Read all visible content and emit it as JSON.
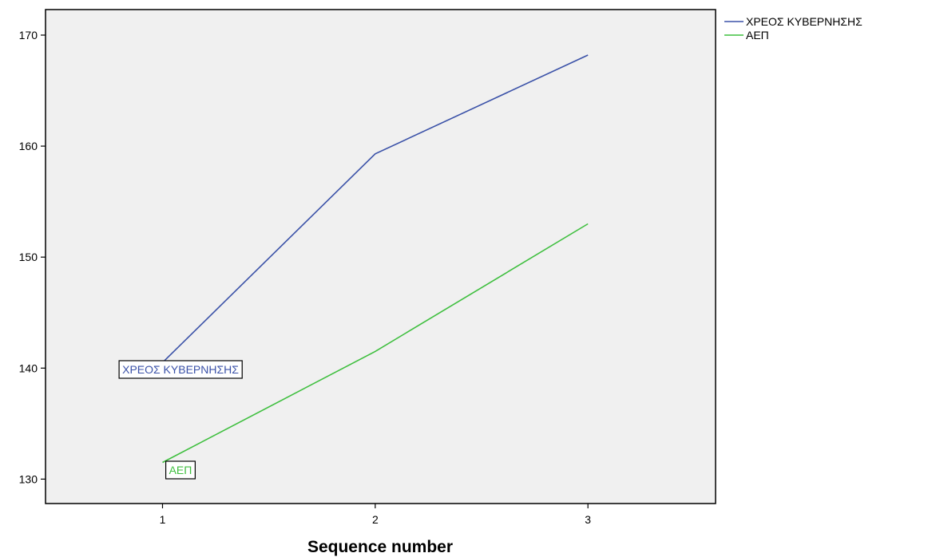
{
  "chart_data": {
    "type": "line",
    "title": "",
    "xlabel": "Sequence number",
    "ylabel": "",
    "x": [
      1,
      2,
      3
    ],
    "xlim": [
      0.45,
      3.6
    ],
    "ylim": [
      127.8,
      172.3
    ],
    "yticks": [
      130,
      140,
      150,
      160,
      170
    ],
    "xticks": [
      1,
      2,
      3
    ],
    "grid": false,
    "legend_placement": "top-right outside plot",
    "plot_background": "#f0f0f0",
    "series": [
      {
        "name": "ΧΡΕΟΣ ΚΥΒΕΡΝΗΣΗΣ",
        "values": [
          140.5,
          159.3,
          168.2
        ],
        "color": "#3b52a8",
        "inline_label": "ΧΡΕΟΣ ΚΥΒΕΡΝΗΣΗΣ"
      },
      {
        "name": "ΑΕΠ",
        "values": [
          131.5,
          141.5,
          153.0
        ],
        "color": "#3fbf3f",
        "inline_label": "ΑΕΠ"
      }
    ]
  }
}
